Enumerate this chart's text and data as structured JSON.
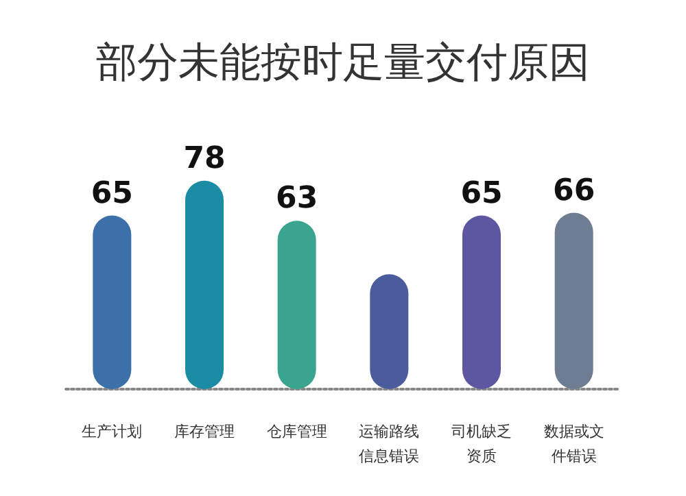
{
  "chart_data": {
    "type": "bar",
    "title": "部分未能按时足量交付原因",
    "categories": [
      "生产计划",
      "库存管理",
      "仓库管理",
      "运输路线信息错误",
      "司机缺乏资质",
      "数据或文件错误"
    ],
    "values": [
      65,
      78,
      63,
      43,
      65,
      66
    ],
    "value_labels": [
      "65",
      "78",
      "63",
      null,
      "65",
      "66"
    ],
    "colors": [
      "#3d6fa8",
      "#1a8ca3",
      "#3aa48e",
      "#4a5c9c",
      "#5d56a0",
      "#6f7d92"
    ]
  }
}
